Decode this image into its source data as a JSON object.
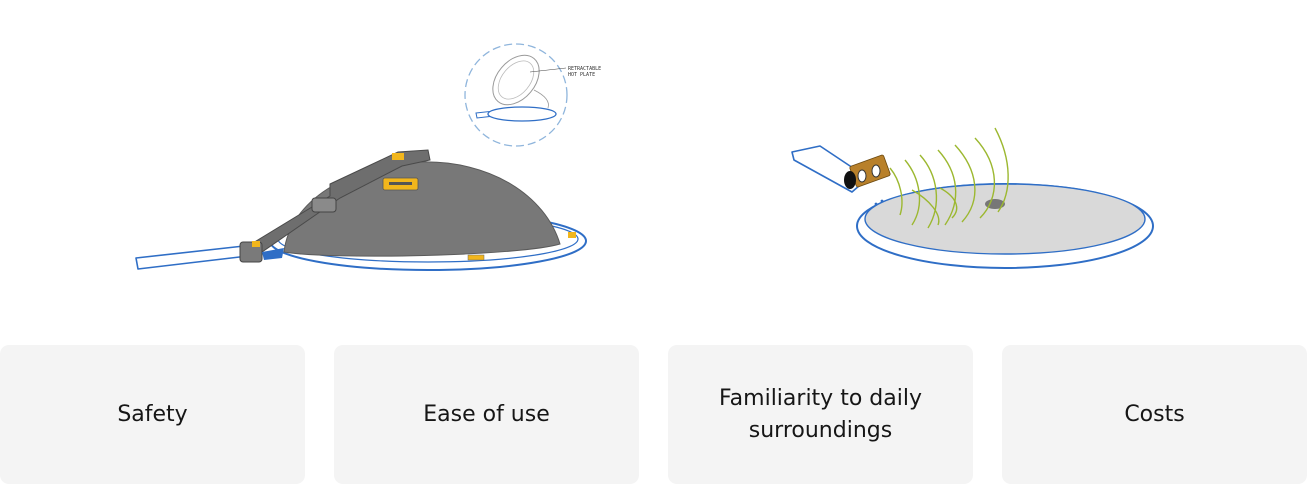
{
  "illustration_left": {
    "inset_label_line1": "RETRACTABLE",
    "inset_label_line2": "HOT PLATE",
    "colors": {
      "outline_blue": "#2f6ec6",
      "lid_gray": "#787878",
      "accent_yellow": "#f2b61c"
    }
  },
  "illustration_right": {
    "colors": {
      "outline_blue": "#2f6ec6",
      "surface_gray": "#d9d9d9",
      "sensor_brown": "#b8802a",
      "wave_green": "#9cb830"
    }
  },
  "criteria": [
    {
      "label": "Safety"
    },
    {
      "label": "Ease of use"
    },
    {
      "label": "Familiarity to daily surroundings"
    },
    {
      "label": "Costs"
    }
  ]
}
